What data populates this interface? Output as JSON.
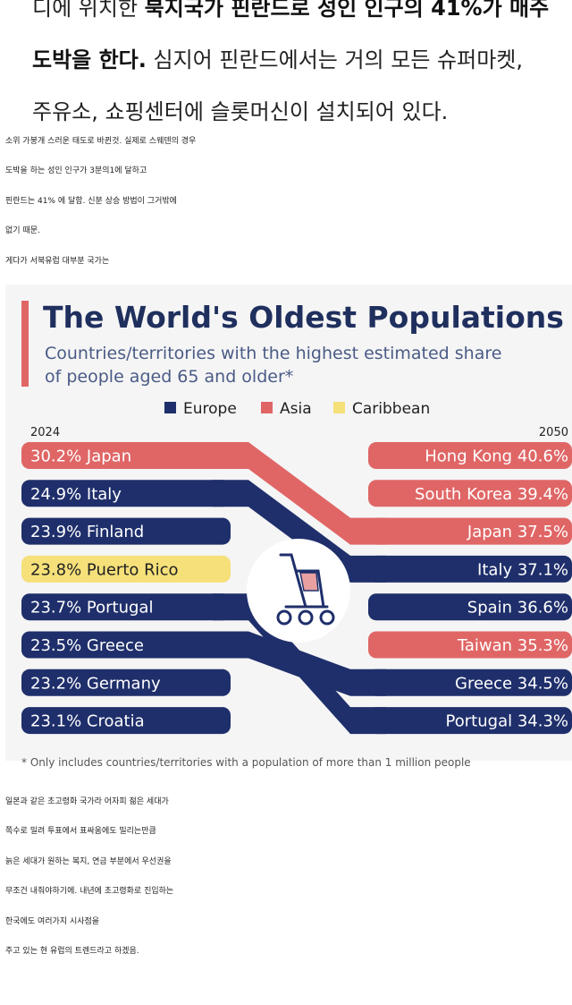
{
  "header_text": {
    "line1_prefix": "디에 위치한 ",
    "line1_bold": "북지국가 핀란드로 성인 인구의 41%가 매주",
    "line2_bold": "도박을 한다.",
    "line2_rest": " 심지어 핀란드에서는 거의 모든 슈퍼마켓,",
    "line3": "주유소, 쇼핑센터에 슬롯머신이 설치되어 있다."
  },
  "intro_lines": [
    "소위 가붕개 스러운 태도로 바뀐것. 실제로 스웨덴의 경우",
    "도박을 하는 성인 인구가 3분의1에 달하고",
    "핀란드는 41% 에 달함. 신분 상승 방법이 그거밖에",
    "없기 때문.",
    "게다가 서북유럽 대부분 국가는"
  ],
  "outro_lines": [
    "일본과 같은 초고령화 국가라 어자피 젊은 세대가",
    "쪽수로 밀려 투표에서 표싸움에도 밀리는만큼",
    "늙은 세대가 원하는 복지, 연금 부분에서 우선권을",
    "무조건 내줘야하기에. 내년에 초고령화로 진입하는",
    "한국에도 여러가지 시사점을",
    "주고 있는 현 유럽의 트렌드라고 하겠음."
  ],
  "chart_data": {
    "type": "table",
    "title": "The World's Oldest Populations",
    "subtitle_line1": "Countries/territories with the highest estimated share",
    "subtitle_line2": "of people aged 65 and older*",
    "legend": [
      {
        "label": "Europe",
        "color": "#1f2f6b"
      },
      {
        "label": "Asia",
        "color": "#e06666"
      },
      {
        "label": "Caribbean",
        "color": "#f5e07a"
      }
    ],
    "left_year": "2024",
    "right_year": "2050",
    "left": [
      {
        "label": "30.2% Japan",
        "country": "Japan",
        "value": 30.2,
        "region": "Asia"
      },
      {
        "label": "24.9% Italy",
        "country": "Italy",
        "value": 24.9,
        "region": "Europe"
      },
      {
        "label": "23.9% Finland",
        "country": "Finland",
        "value": 23.9,
        "region": "Europe"
      },
      {
        "label": "23.8% Puerto Rico",
        "country": "Puerto Rico",
        "value": 23.8,
        "region": "Caribbean"
      },
      {
        "label": "23.7% Portugal",
        "country": "Portugal",
        "value": 23.7,
        "region": "Europe"
      },
      {
        "label": "23.5% Greece",
        "country": "Greece",
        "value": 23.5,
        "region": "Europe"
      },
      {
        "label": "23.2% Germany",
        "country": "Germany",
        "value": 23.2,
        "region": "Europe"
      },
      {
        "label": "23.1% Croatia",
        "country": "Croatia",
        "value": 23.1,
        "region": "Europe"
      }
    ],
    "right": [
      {
        "label": "Hong Kong 40.6%",
        "country": "Hong Kong",
        "value": 40.6,
        "region": "Asia"
      },
      {
        "label": "South Korea 39.4%",
        "country": "South Korea",
        "value": 39.4,
        "region": "Asia"
      },
      {
        "label": "Japan 37.5%",
        "country": "Japan",
        "value": 37.5,
        "region": "Asia"
      },
      {
        "label": "Italy 37.1%",
        "country": "Italy",
        "value": 37.1,
        "region": "Europe"
      },
      {
        "label": "Spain 36.6%",
        "country": "Spain",
        "value": 36.6,
        "region": "Europe"
      },
      {
        "label": "Taiwan 35.3%",
        "country": "Taiwan",
        "value": 35.3,
        "region": "Asia"
      },
      {
        "label": "Greece 34.5%",
        "country": "Greece",
        "value": 34.5,
        "region": "Europe"
      },
      {
        "label": "Portugal 34.3%",
        "country": "Portugal",
        "value": 34.3,
        "region": "Europe"
      }
    ],
    "footnote": "* Only includes countries/territories with a population of more than 1 million people"
  },
  "colors": {
    "europe": "#1f2f6b",
    "asia": "#e06666",
    "caribbean": "#f5e07a",
    "title_bar": "#e06666",
    "title": "#1f2f5e",
    "subtitle": "#4a5b86"
  },
  "icons": {
    "center": "walker-icon"
  }
}
